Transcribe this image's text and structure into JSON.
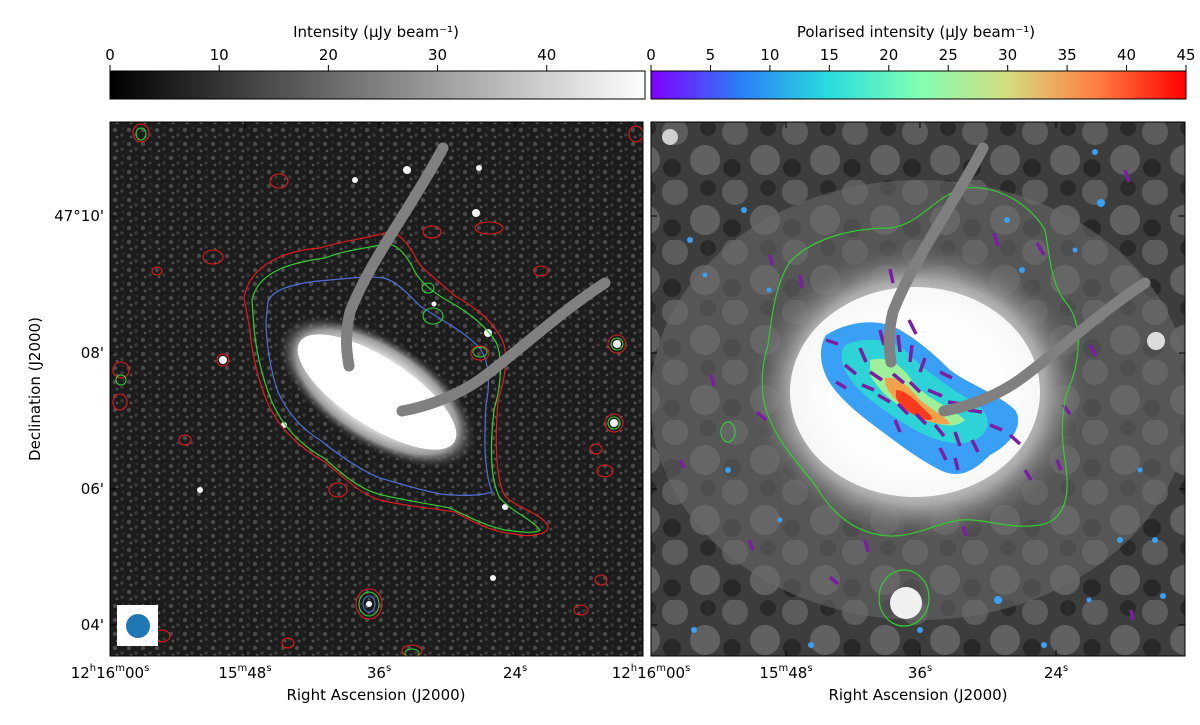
{
  "figure": {
    "colorbar_left": {
      "label": "Intensity (μJy beam⁻¹)",
      "ticks": [
        "0",
        "10",
        "20",
        "30",
        "40"
      ],
      "tick_values": [
        0,
        10,
        20,
        30,
        40
      ],
      "range": [
        0,
        49
      ],
      "colormap": "gray",
      "colors": [
        "#000000",
        "#ffffff"
      ]
    },
    "colorbar_right": {
      "label": "Polarised intensity (μJy beam⁻¹)",
      "ticks": [
        "0",
        "5",
        "10",
        "15",
        "20",
        "25",
        "30",
        "35",
        "40",
        "45"
      ],
      "tick_values": [
        0,
        5,
        10,
        15,
        20,
        25,
        30,
        35,
        40,
        45
      ],
      "range": [
        0,
        45
      ],
      "colormap": "rainbow",
      "colors": [
        "#7f00ff",
        "#2c7ef8",
        "#2adddd",
        "#80ffb4",
        "#d4dd80",
        "#ff7e41",
        "#ff0000"
      ]
    },
    "axes": {
      "y_label": "Declination (J2000)",
      "x_label": "Right Ascension (J2000)",
      "y_ticks": [
        "47°10'",
        "08'",
        "06'",
        "04'"
      ],
      "x_tick_ra_first": {
        "h": "12",
        "m": "16",
        "s": "00"
      },
      "x_ticks_rest": [
        {
          "m": "15",
          "s": "48"
        },
        {
          "s": "36"
        },
        {
          "s": "24"
        }
      ]
    },
    "contour_colors": {
      "red": "#e41a1c",
      "green": "#33cc33",
      "blue": "#4f6fd8"
    },
    "overlay_color": "#808080",
    "beam_color": "#1f77b4"
  },
  "chart_data": [
    {
      "type": "heatmap",
      "panel": "left",
      "title": "",
      "xlabel": "Right Ascension (J2000)",
      "ylabel": "Declination (J2000)",
      "colorbar_label": "Intensity (μJy beam⁻¹)",
      "colorbar_range": [
        0,
        49
      ],
      "colormap": "gray",
      "x_tick_labels": [
        "12h16m00s",
        "15m48s",
        "36s",
        "24s"
      ],
      "y_tick_labels": [
        "47°10'",
        "08'",
        "06'",
        "04'"
      ],
      "overlays": [
        "red contour",
        "green contour",
        "blue contour",
        "grey curved tracks",
        "synthesized beam ellipse"
      ]
    },
    {
      "type": "heatmap",
      "panel": "right",
      "title": "",
      "xlabel": "Right Ascension (J2000)",
      "ylabel": "",
      "colorbar_label": "Polarised intensity (μJy beam⁻¹)",
      "colorbar_range": [
        0,
        45
      ],
      "colormap": "rainbow",
      "x_tick_labels": [
        "12h16m00s",
        "15m48s",
        "36s",
        "24s"
      ],
      "y_tick_labels": [],
      "overlays": [
        "green contour",
        "polarisation vectors (purple)",
        "grey curved tracks"
      ]
    }
  ]
}
